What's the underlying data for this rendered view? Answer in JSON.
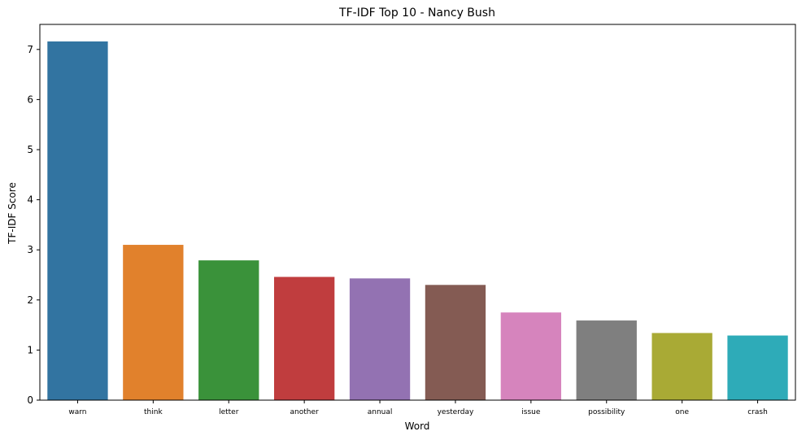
{
  "chart_data": {
    "type": "bar",
    "title": "TF-IDF Top 10 - Nancy Bush",
    "xlabel": "Word",
    "ylabel": "TF-IDF Score",
    "categories": [
      "warn",
      "think",
      "letter",
      "another",
      "annual",
      "yesterday",
      "issue",
      "possibility",
      "one",
      "crash"
    ],
    "values": [
      7.16,
      3.1,
      2.79,
      2.46,
      2.43,
      2.3,
      1.75,
      1.59,
      1.34,
      1.29
    ],
    "colors": [
      "#3274a1",
      "#e1812c",
      "#3a923a",
      "#c03d3e",
      "#9372b2",
      "#845b53",
      "#d684bd",
      "#7f7f7f",
      "#a9aa35",
      "#2eabb8"
    ],
    "ylim": [
      0,
      7.5
    ],
    "yticks": [
      0,
      1,
      2,
      3,
      4,
      5,
      6,
      7
    ],
    "grid": false,
    "legend": "none"
  }
}
